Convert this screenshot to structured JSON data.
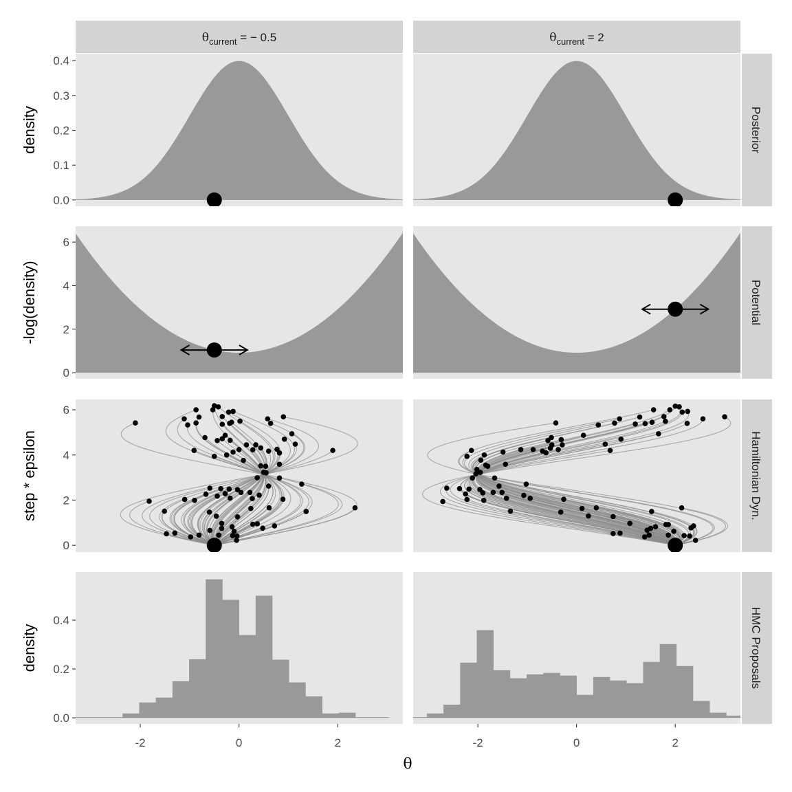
{
  "chart_data": {
    "type": "faceted",
    "x_axis": {
      "label": "θ",
      "xlim": [
        -3.31,
        3.32
      ],
      "ticks": [
        -2,
        0,
        2
      ],
      "tick_labels": [
        "-2",
        "0",
        "2"
      ]
    },
    "grid": false,
    "colors": {
      "panel_bg": "#e6e6e6",
      "strip_bg": "#d3d3d3",
      "fill": "#999999",
      "trajectory": "#8c8c8c",
      "point": "#000000"
    },
    "columns": [
      {
        "strip": {
          "symbol": "θ",
          "subscript": "current",
          "value": " = − 0.5"
        },
        "theta_current": -0.5,
        "momentum_arrow_half_width": 0.67,
        "hamiltonian_points": [
          [
            -2.1,
            5.42
          ],
          [
            -0.87,
            6.0
          ],
          [
            -0.5,
            6.18
          ],
          [
            -0.42,
            6.13
          ],
          [
            -0.53,
            6.0
          ],
          [
            -0.21,
            5.9
          ],
          [
            -0.12,
            5.93
          ],
          [
            -0.81,
            5.68
          ],
          [
            -0.34,
            5.7
          ],
          [
            -1.11,
            5.6
          ],
          [
            -1.04,
            5.33
          ],
          [
            -0.87,
            5.42
          ],
          [
            -0.34,
            5.36
          ],
          [
            -0.19,
            5.4
          ],
          [
            -0.15,
            5.45
          ],
          [
            0.02,
            5.5
          ],
          [
            0.58,
            5.6
          ],
          [
            0.9,
            5.69
          ],
          [
            0.64,
            5.4
          ],
          [
            1.07,
            4.94
          ],
          [
            0.92,
            4.7
          ],
          [
            1.14,
            4.48
          ],
          [
            1.9,
            4.2
          ],
          [
            -0.69,
            4.77
          ],
          [
            -0.28,
            4.87
          ],
          [
            -0.34,
            4.72
          ],
          [
            -0.44,
            4.64
          ],
          [
            -0.18,
            4.65
          ],
          [
            0.15,
            4.45
          ],
          [
            0.34,
            4.45
          ],
          [
            0.44,
            4.31
          ],
          [
            0.28,
            4.23
          ],
          [
            0.0,
            4.24
          ],
          [
            -0.12,
            4.13
          ],
          [
            -0.25,
            4.0
          ],
          [
            -0.5,
            3.94
          ],
          [
            -0.91,
            4.2
          ],
          [
            0.6,
            4.17
          ],
          [
            0.77,
            4.25
          ],
          [
            0.82,
            4.09
          ],
          [
            0.09,
            3.76
          ],
          [
            0.82,
            3.59
          ],
          [
            0.44,
            3.52
          ],
          [
            0.54,
            3.5
          ],
          [
            0.5,
            3.23
          ],
          [
            0.55,
            3.21
          ],
          [
            0.37,
            2.99
          ],
          [
            0.82,
            2.98
          ],
          [
            1.27,
            2.71
          ],
          [
            0.6,
            2.62
          ],
          [
            -0.59,
            2.53
          ],
          [
            -0.37,
            2.51
          ],
          [
            -0.2,
            2.49
          ],
          [
            -0.03,
            2.46
          ],
          [
            0.04,
            2.34
          ],
          [
            0.22,
            2.34
          ],
          [
            0.41,
            2.22
          ],
          [
            0.27,
            2.07
          ],
          [
            0.89,
            2.04
          ],
          [
            -0.28,
            2.29
          ],
          [
            -0.44,
            2.18
          ],
          [
            -0.67,
            2.26
          ],
          [
            -0.18,
            2.09
          ],
          [
            -0.9,
            1.99
          ],
          [
            -1.1,
            2.03
          ],
          [
            -1.82,
            1.95
          ],
          [
            -1.51,
            1.51
          ],
          [
            -0.6,
            1.47
          ],
          [
            -0.46,
            1.29
          ],
          [
            -0.03,
            1.26
          ],
          [
            0.24,
            1.63
          ],
          [
            0.61,
            1.66
          ],
          [
            1.36,
            1.5
          ],
          [
            2.35,
            1.66
          ],
          [
            -0.35,
            0.97
          ],
          [
            -0.35,
            0.75
          ],
          [
            -0.14,
            0.82
          ],
          [
            0.28,
            0.93
          ],
          [
            0.37,
            0.95
          ],
          [
            0.48,
            0.76
          ],
          [
            0.72,
            0.86
          ],
          [
            -0.59,
            0.66
          ],
          [
            -0.1,
            0.62
          ],
          [
            -1.47,
            0.51
          ],
          [
            -1.3,
            0.54
          ],
          [
            -0.98,
            0.37
          ],
          [
            -0.81,
            0.45
          ],
          [
            -0.41,
            0.45
          ],
          [
            -0.13,
            0.43
          ],
          [
            -0.04,
            0.41
          ],
          [
            -0.05,
            0.22
          ]
        ],
        "histogram": {
          "bin_start": -3.37,
          "bin_width": 0.337,
          "density": [
            0,
            0,
            0.003,
            0.018,
            0.063,
            0.083,
            0.15,
            0.24,
            0.567,
            0.483,
            0.339,
            0.5,
            0.238,
            0.145,
            0.088,
            0.018,
            0.021,
            0,
            0
          ]
        }
      },
      {
        "strip": {
          "symbol": "θ",
          "subscript": "current",
          "value": " = 2"
        },
        "theta_current": 2,
        "momentum_arrow_half_width": 0.67,
        "hamiltonian_points": [
          [
            -0.42,
            5.42
          ],
          [
            0.44,
            5.33
          ],
          [
            0.77,
            5.41
          ],
          [
            0.87,
            5.6
          ],
          [
            1.28,
            5.68
          ],
          [
            1.19,
            5.37
          ],
          [
            1.39,
            5.39
          ],
          [
            1.53,
            5.45
          ],
          [
            1.56,
            6.0
          ],
          [
            1.89,
            6.0
          ],
          [
            2.0,
            6.16
          ],
          [
            2.08,
            6.13
          ],
          [
            2.14,
            5.9
          ],
          [
            2.25,
            5.93
          ],
          [
            1.77,
            5.7
          ],
          [
            1.8,
            5.49
          ],
          [
            2.24,
            5.4
          ],
          [
            2.56,
            5.6
          ],
          [
            3.0,
            5.69
          ],
          [
            1.66,
            4.94
          ],
          [
            0.9,
            4.7
          ],
          [
            0.58,
            4.48
          ],
          [
            0.68,
            4.2
          ],
          [
            0.14,
            4.87
          ],
          [
            -0.51,
            4.77
          ],
          [
            -0.58,
            4.64
          ],
          [
            -0.31,
            4.68
          ],
          [
            -0.29,
            4.45
          ],
          [
            -0.5,
            4.45
          ],
          [
            -0.53,
            4.3
          ],
          [
            -0.37,
            4.24
          ],
          [
            -0.69,
            4.17
          ],
          [
            -0.62,
            4.1
          ],
          [
            -0.88,
            4.24
          ],
          [
            -1.13,
            4.24
          ],
          [
            -1.49,
            4.13
          ],
          [
            -1.87,
            4.0
          ],
          [
            -2.13,
            4.2
          ],
          [
            -2.22,
            3.94
          ],
          [
            -1.94,
            3.77
          ],
          [
            -1.44,
            3.59
          ],
          [
            -1.84,
            3.55
          ],
          [
            -1.8,
            3.5
          ],
          [
            -2.02,
            3.36
          ],
          [
            -1.95,
            3.23
          ],
          [
            -2.04,
            3.16
          ],
          [
            -2.11,
            2.98
          ],
          [
            -1.66,
            2.98
          ],
          [
            -1.02,
            2.71
          ],
          [
            -1.57,
            2.62
          ],
          [
            -2.63,
            2.53
          ],
          [
            -2.37,
            2.51
          ],
          [
            -2.18,
            2.49
          ],
          [
            -1.96,
            2.47
          ],
          [
            -1.9,
            2.32
          ],
          [
            -1.51,
            2.34
          ],
          [
            -1.69,
            2.34
          ],
          [
            -2.25,
            2.27
          ],
          [
            -1.42,
            2.08
          ],
          [
            -1.07,
            2.21
          ],
          [
            -0.94,
            2.08
          ],
          [
            -2.22,
            2.03
          ],
          [
            -1.88,
            1.99
          ],
          [
            -2.71,
            1.94
          ],
          [
            -0.26,
            2.04
          ],
          [
            -1.34,
            1.51
          ],
          [
            -0.32,
            1.47
          ],
          [
            0.11,
            1.63
          ],
          [
            0.4,
            1.66
          ],
          [
            0.24,
            1.3
          ],
          [
            0.74,
            1.27
          ],
          [
            1.52,
            1.5
          ],
          [
            2.13,
            1.66
          ],
          [
            1.08,
            0.97
          ],
          [
            1.81,
            0.92
          ],
          [
            1.86,
            0.92
          ],
          [
            1.43,
            0.67
          ],
          [
            1.5,
            0.75
          ],
          [
            1.6,
            0.82
          ],
          [
            1.97,
            0.62
          ],
          [
            2.32,
            0.77
          ],
          [
            2.37,
            0.86
          ],
          [
            0.74,
            0.52
          ],
          [
            0.88,
            0.54
          ],
          [
            1.38,
            0.37
          ],
          [
            1.47,
            0.45
          ],
          [
            1.86,
            0.45
          ],
          [
            2.18,
            0.43
          ],
          [
            2.29,
            0.41
          ],
          [
            2.41,
            0.22
          ]
        ],
        "histogram": {
          "bin_start": -3.37,
          "bin_width": 0.337,
          "density": [
            0.003,
            0.018,
            0.054,
            0.226,
            0.359,
            0.195,
            0.162,
            0.178,
            0.184,
            0.173,
            0.094,
            0.167,
            0.153,
            0.142,
            0.229,
            0.302,
            0.212,
            0.069,
            0.021,
            0.009
          ]
        }
      }
    ],
    "rows": [
      {
        "strip": "Posterior",
        "ylabel": "density",
        "kind": "normal_density",
        "ylim": [
          -0.018,
          0.42
        ],
        "ticks": [
          0,
          0.1,
          0.2,
          0.3,
          0.4
        ],
        "tick_labels": [
          "0.0",
          "0.1",
          "0.2",
          "0.3",
          "0.4"
        ]
      },
      {
        "strip": "Potential",
        "ylabel": "-log(density)",
        "kind": "potential",
        "ylim": [
          -0.28,
          6.73
        ],
        "ticks": [
          0,
          2,
          4,
          6
        ],
        "tick_labels": [
          "0",
          "2",
          "4",
          "6"
        ]
      },
      {
        "strip": "Hamiltonian Dyn.",
        "ylabel": "step * epsilon",
        "kind": "trajectories",
        "ylim": [
          -0.3,
          6.46
        ],
        "ticks": [
          0,
          2,
          4,
          6
        ],
        "tick_labels": [
          "0",
          "2",
          "4",
          "6"
        ]
      },
      {
        "strip": "HMC Proposals",
        "ylabel": "density",
        "kind": "histogram",
        "ylim": [
          -0.025,
          0.597
        ],
        "ticks": [
          0,
          0.2,
          0.4
        ],
        "tick_labels": [
          "0.0",
          "0.2",
          "0.4"
        ]
      }
    ]
  }
}
